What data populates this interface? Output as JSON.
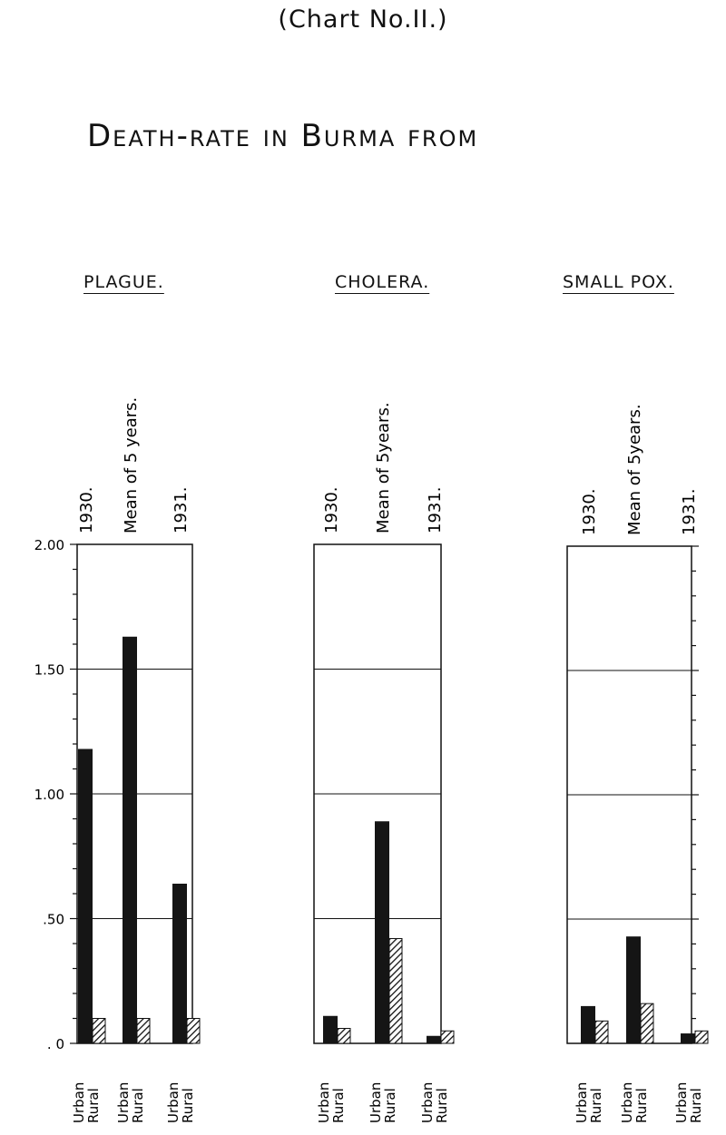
{
  "header": {
    "chart_number": "(Chart No.II.)",
    "title": "Death-rate in Burma from"
  },
  "chart_data": [
    {
      "type": "bar",
      "title": "PLAGUE.",
      "groups": [
        "1930.",
        "Mean of 5 years.",
        "1931."
      ],
      "series": [
        {
          "name": "Urban",
          "values": [
            1.18,
            1.63,
            0.64
          ]
        },
        {
          "name": "Rural",
          "values": [
            0.1,
            0.1,
            0.1
          ]
        }
      ],
      "x_labels": [
        [
          "Urban",
          "Rural"
        ],
        [
          "Urban",
          "Rural"
        ],
        [
          "Urban",
          "Rural"
        ]
      ],
      "ylim": [
        0,
        2.0
      ],
      "yticks": [
        "2.00",
        "1.50",
        "1.00",
        ".50",
        ". 0"
      ],
      "grid": true
    },
    {
      "type": "bar",
      "title": "CHOLERA.",
      "groups": [
        "1930.",
        "Mean of 5years.",
        "1931."
      ],
      "series": [
        {
          "name": "Urban",
          "values": [
            0.11,
            0.89,
            0.03
          ]
        },
        {
          "name": "Rural",
          "values": [
            0.06,
            0.42,
            0.05
          ]
        }
      ],
      "x_labels": [
        [
          "Urban",
          "Rural"
        ],
        [
          "Urban",
          "Rural"
        ],
        [
          "Urban",
          "Rural"
        ]
      ],
      "ylim": [
        0,
        2.0
      ],
      "grid": true
    },
    {
      "type": "bar",
      "title": "SMALL POX.",
      "groups": [
        "1930.",
        "Mean of 5years.",
        "1931."
      ],
      "series": [
        {
          "name": "Urban",
          "values": [
            0.15,
            0.43,
            0.04
          ]
        },
        {
          "name": "Rural",
          "values": [
            0.09,
            0.16,
            0.05
          ]
        }
      ],
      "x_labels": [
        [
          "Urban",
          "Rural"
        ],
        [
          "Urban",
          "Rural"
        ],
        [
          "Urban",
          "Rural"
        ]
      ],
      "ylim": [
        0,
        2.0
      ],
      "grid": true
    }
  ]
}
